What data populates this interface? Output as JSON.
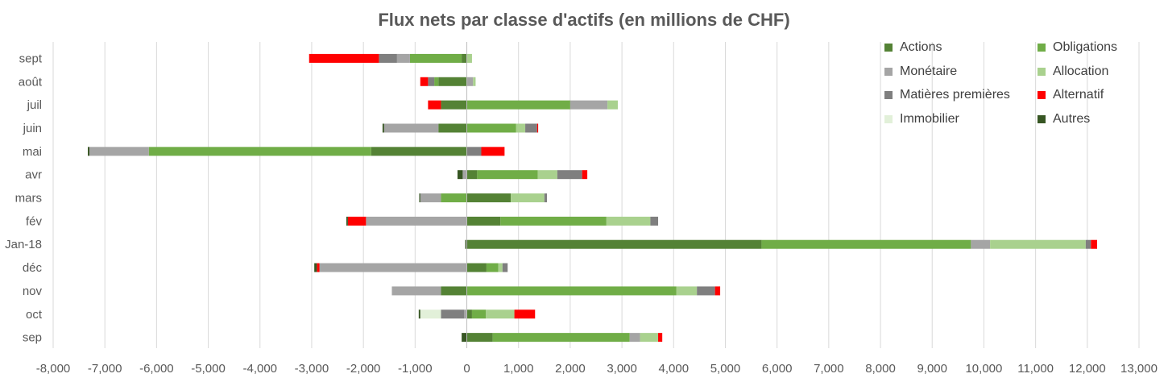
{
  "chart_data": {
    "type": "bar",
    "orientation": "horizontal",
    "stacked": true,
    "title": "Flux nets par classe d'actifs (en millions de CHF)",
    "xlim": [
      -8000,
      13000
    ],
    "x_ticks": [
      -8000,
      -7000,
      -6000,
      -5000,
      -4000,
      -3000,
      -2000,
      -1000,
      0,
      1000,
      2000,
      3000,
      4000,
      5000,
      6000,
      7000,
      8000,
      9000,
      10000,
      11000,
      12000,
      13000
    ],
    "x_tick_labels": [
      "-8,000",
      "-7,000",
      "-6,000",
      "-5,000",
      "-4,000",
      "-3,000",
      "-2,000",
      "-1,000",
      "0",
      "1,000",
      "2,000",
      "3,000",
      "4,000",
      "5,000",
      "6,000",
      "7,000",
      "8,000",
      "9,000",
      "10,000",
      "11,000",
      "12,000",
      "13,000"
    ],
    "grid": "vertical",
    "legend_position": "top-right",
    "categories": [
      "sept",
      "août",
      "juil",
      "juin",
      "mai",
      "avr",
      "mars",
      "fév",
      "Jan-18",
      "déc",
      "nov",
      "oct",
      "sep"
    ],
    "series": [
      {
        "name": "Actions",
        "color": "#548235",
        "values": [
          -100,
          -550,
          -500,
          -550,
          -1850,
          200,
          850,
          650,
          5700,
          380,
          -500,
          100,
          500
        ]
      },
      {
        "name": "Obligations",
        "color": "#70AD47",
        "values": [
          -1000,
          -80,
          2000,
          950,
          -4300,
          1170,
          -500,
          2050,
          4050,
          230,
          4050,
          270,
          2650
        ]
      },
      {
        "name": "Monétaire",
        "color": "#A5A5A5",
        "values": [
          -250,
          120,
          720,
          -1050,
          -1150,
          -80,
          -400,
          -1950,
          370,
          -2850,
          -950,
          -50,
          200
        ]
      },
      {
        "name": "Allocation",
        "color": "#A9D18E",
        "values": [
          100,
          50,
          200,
          180,
          0,
          380,
          650,
          850,
          1850,
          80,
          400,
          550,
          350
        ]
      },
      {
        "name": "Matières premières",
        "color": "#7F7F7F",
        "values": [
          -350,
          -120,
          0,
          230,
          280,
          480,
          50,
          150,
          100,
          100,
          350,
          -450,
          0
        ]
      },
      {
        "name": "Alternatif",
        "color": "#FF0000",
        "values": [
          -1350,
          -150,
          -250,
          20,
          450,
          100,
          0,
          -350,
          120,
          -50,
          100,
          400,
          80
        ]
      },
      {
        "name": "Immobilier",
        "color": "#E2F0D9",
        "values": [
          0,
          0,
          0,
          0,
          0,
          0,
          0,
          0,
          0,
          0,
          0,
          -400,
          0
        ]
      },
      {
        "name": "Autres",
        "color": "#375623",
        "values": [
          0,
          0,
          0,
          -30,
          -30,
          -100,
          -20,
          -30,
          -30,
          -50,
          0,
          -30,
          -100
        ]
      }
    ]
  }
}
